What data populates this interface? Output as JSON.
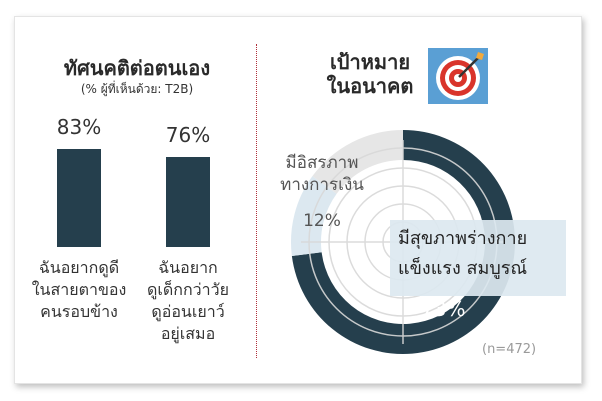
{
  "chart_data": [
    {
      "type": "bar",
      "title": "ทัศนคติต่อตนเอง",
      "subtitle": "(% ผู้ที่เห็นด้วย: T2B)",
      "categories": [
        "ฉันอยากดูดี\nในสายตาของ\nคนรอบข้าง",
        "ฉันอยาก\nดูเด็กกว่าวัย\nดูอ่อนเยาว์\nอยู่เสมอ"
      ],
      "values": [
        83,
        76
      ],
      "value_labels": [
        "83%",
        "76%"
      ],
      "ylim": [
        0,
        100
      ],
      "colors": [
        "#253f4d",
        "#253f4d"
      ]
    },
    {
      "type": "pie",
      "title": "เป้าหมาย\nในอนาคต",
      "slices": [
        {
          "label": "มีสุขภาพร่างกาย\nแข็งแรง สมบูรณ์",
          "value": 73,
          "value_label": "73%",
          "color": "#253f4d"
        },
        {
          "label": "มีอิสรภาพ\nทางการเงิน",
          "value": 12,
          "value_label": "12%",
          "color": "#dce8f0"
        },
        {
          "label": "",
          "value": 15,
          "value_label": "",
          "color": "#e6e6e6"
        }
      ],
      "annotation": "(n=472)"
    }
  ],
  "icon": "target-bullseye-icon"
}
